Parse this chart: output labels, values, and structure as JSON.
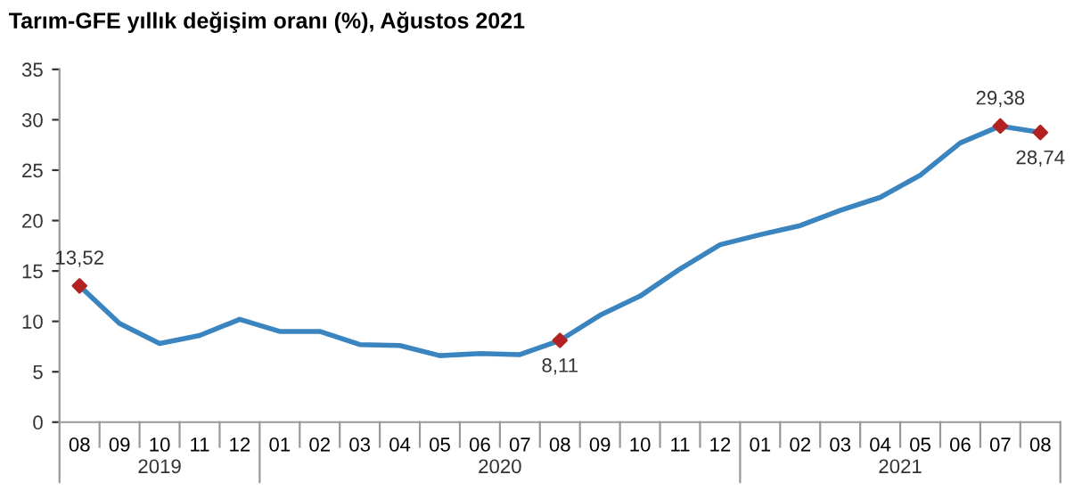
{
  "chart_data": {
    "type": "line",
    "title": "Tarım-GFE yıllık değişim oranı (%), Ağustos 2021",
    "categories": [
      "08",
      "09",
      "10",
      "11",
      "12",
      "01",
      "02",
      "03",
      "04",
      "05",
      "06",
      "07",
      "08",
      "09",
      "10",
      "11",
      "12",
      "01",
      "02",
      "03",
      "04",
      "05",
      "06",
      "07",
      "08"
    ],
    "series": [
      {
        "color": "#3a84c0",
        "values": [
          13.52,
          9.8,
          7.8,
          8.6,
          10.2,
          9.0,
          9.0,
          7.7,
          7.6,
          6.6,
          6.8,
          6.7,
          8.11,
          10.6,
          12.5,
          15.2,
          17.6,
          18.6,
          19.5,
          21.0,
          22.3,
          24.5,
          27.7,
          29.38,
          28.74
        ],
        "value_labels": [
          "13,52",
          null,
          null,
          null,
          null,
          null,
          null,
          null,
          null,
          null,
          null,
          null,
          "8,11",
          null,
          null,
          null,
          null,
          null,
          null,
          null,
          null,
          null,
          null,
          "29,38",
          "28,74"
        ]
      },
      {
        "type": "scatter",
        "color": "#b22222",
        "marker": "diamond",
        "values": [
          13.52,
          null,
          null,
          null,
          null,
          null,
          null,
          null,
          null,
          null,
          null,
          null,
          8.11,
          null,
          null,
          null,
          null,
          null,
          null,
          null,
          null,
          null,
          null,
          29.38,
          28.74
        ]
      }
    ],
    "ylim": [
      0,
      35
    ],
    "yticks": [
      0,
      5,
      10,
      15,
      20,
      25,
      30,
      35
    ],
    "grid": false,
    "annotations": [
      "2019",
      "2020",
      "2021"
    ]
  }
}
